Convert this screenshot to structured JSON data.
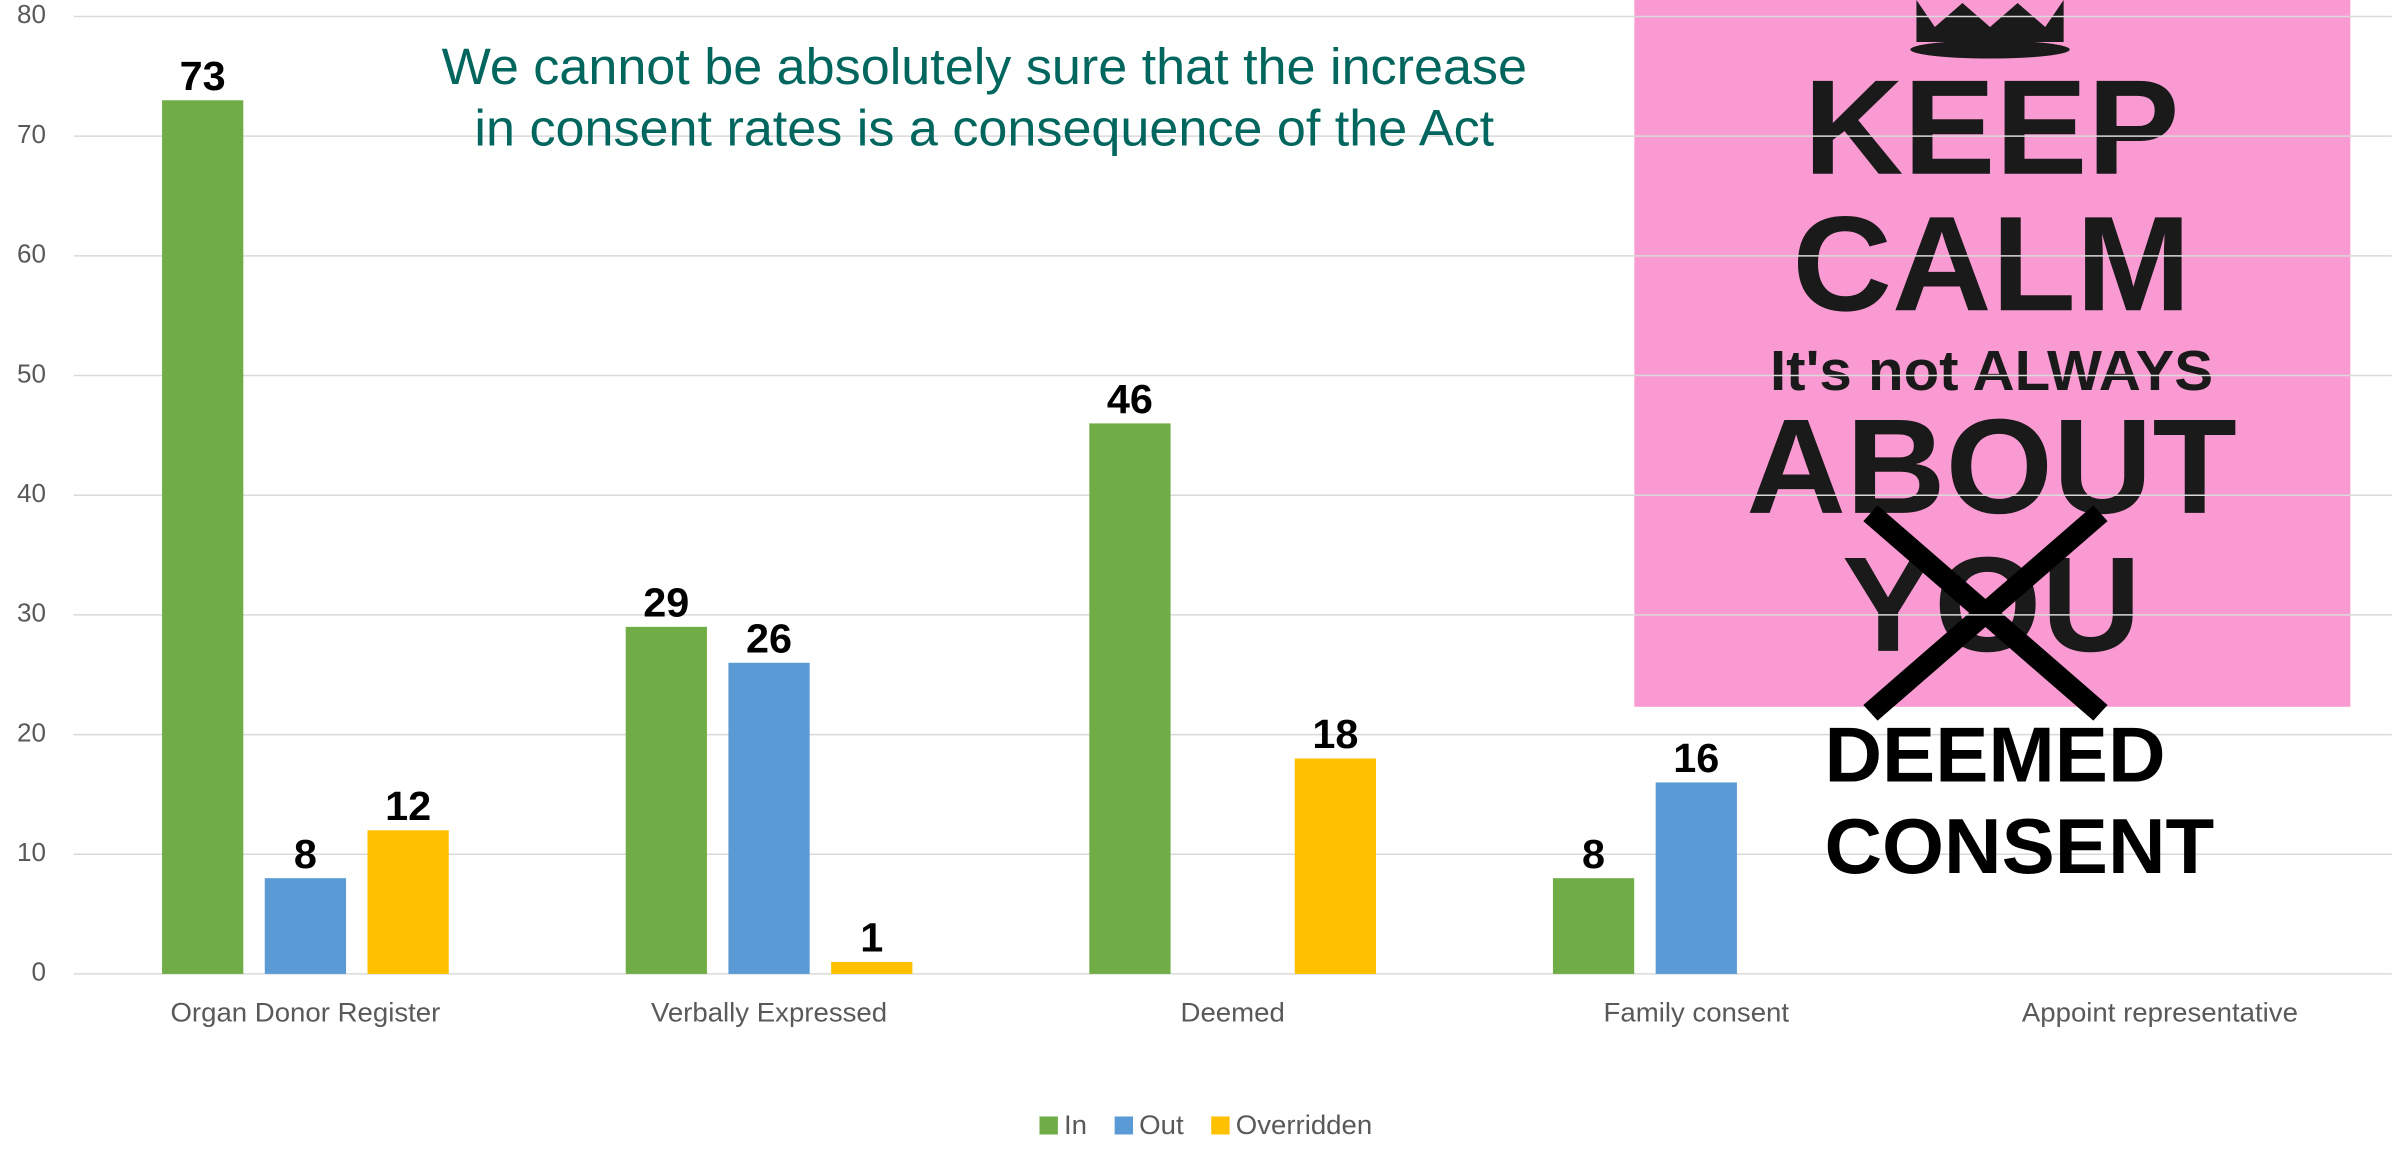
{
  "chart_data": {
    "type": "bar",
    "annotation": [
      "We cannot be absolutely sure that the increase",
      "in consent rates is a consequence of the Act"
    ],
    "categories": [
      "Organ Donor Register",
      "Verbally Expressed",
      "Deemed",
      "Family consent",
      "Appoint representative"
    ],
    "series": [
      {
        "name": "In",
        "color": "#70ad47",
        "values": [
          73,
          29,
          46,
          8,
          null
        ]
      },
      {
        "name": "Out",
        "color": "#5b9bd5",
        "values": [
          8,
          26,
          null,
          16,
          null
        ]
      },
      {
        "name": "Overridden",
        "color": "#ffc000",
        "values": [
          12,
          1,
          18,
          null,
          null
        ]
      }
    ],
    "ylim": [
      0,
      80
    ],
    "yticks": [
      0,
      10,
      20,
      30,
      40,
      50,
      60,
      70,
      80
    ],
    "grid": true,
    "legend": "bottom"
  },
  "poster": {
    "lines": [
      "KEEP",
      "CALM",
      "It's not ALWAYS",
      "ABOUT",
      "YOU"
    ],
    "caption": [
      "DEEMED",
      "CONSENT"
    ]
  }
}
